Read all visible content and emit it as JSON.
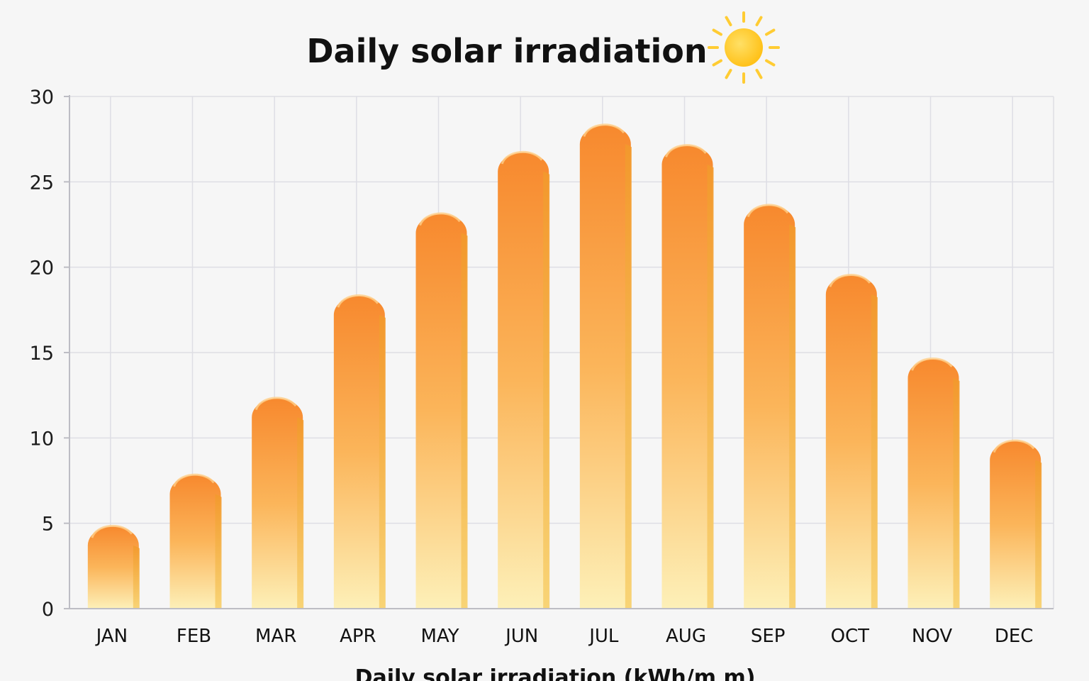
{
  "title": "Daily solar irradiation",
  "title_icon": "sun-icon",
  "colors": {
    "bar_top": "#f7892e",
    "bar_mid": "#fbb55a",
    "bar_bottom": "#fdf0b8",
    "bar_edge": "#f29a2c",
    "grid": "#dedee4",
    "axis": "#bdbdc4",
    "sun": "#ffc21a",
    "sun_ray": "#ffcc33"
  },
  "chart_data": {
    "type": "bar",
    "categories": [
      "JAN",
      "FEB",
      "MAR",
      "APR",
      "MAY",
      "JUN",
      "JUL",
      "AUG",
      "SEP",
      "OCT",
      "NOV",
      "DEC"
    ],
    "values": [
      5.2,
      8.2,
      12.7,
      18.7,
      23.5,
      27.1,
      28.7,
      27.5,
      24.0,
      19.9,
      15.0,
      10.2
    ],
    "xlabel": "Daily solar irradiation (kWh/m m)",
    "ylabel": "",
    "ylim": [
      0,
      30
    ],
    "yticks": [
      0,
      5,
      10,
      15,
      20,
      25,
      30
    ],
    "grid": true,
    "legend": "none"
  }
}
